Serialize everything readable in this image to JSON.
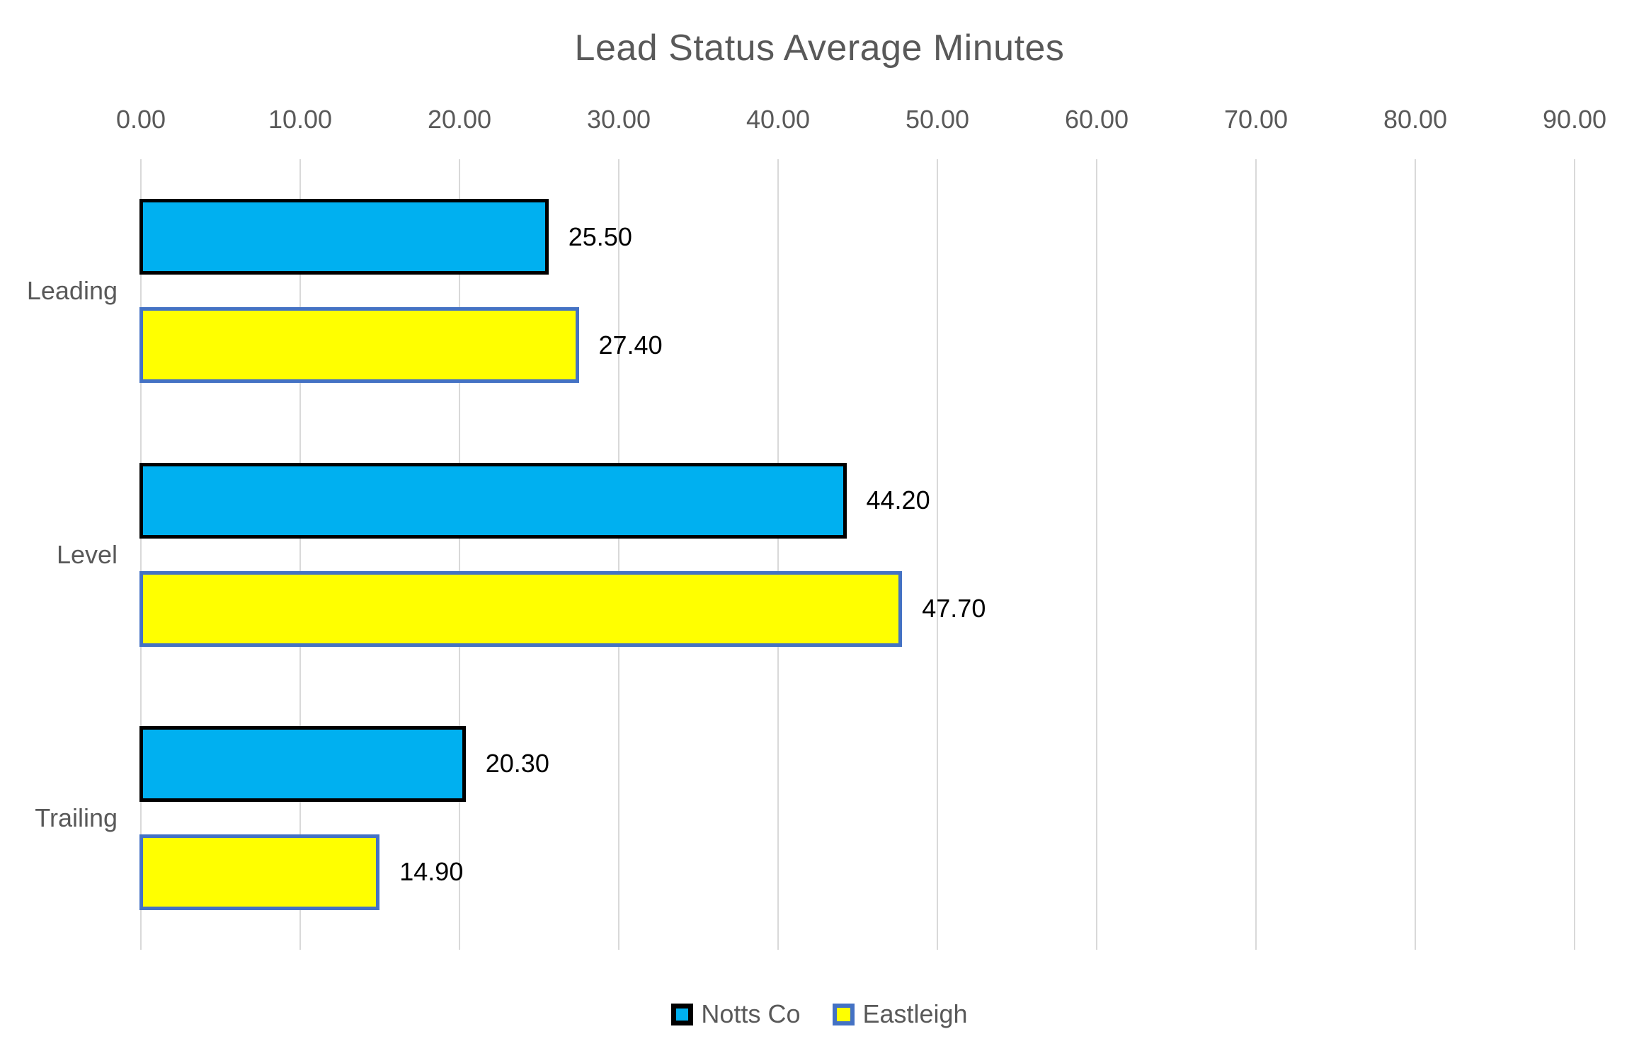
{
  "title": "Lead Status Average Minutes",
  "colors": {
    "notts_co_fill": "#00B0F0",
    "notts_co_border": "#000000",
    "eastleigh_fill": "#FFFF00",
    "eastleigh_border": "#4472C4",
    "gridline": "#D9D9D9",
    "axis_text": "#595959",
    "data_label_text": "#000000",
    "background": "#FFFFFF"
  },
  "chart_data": {
    "type": "bar",
    "orientation": "horizontal",
    "title": "Lead Status Average Minutes",
    "categories": [
      "Leading",
      "Level",
      "Trailing"
    ],
    "series": [
      {
        "name": "Notts Co",
        "fill": "#00B0F0",
        "border": "#000000",
        "values": [
          25.5,
          44.2,
          20.3
        ],
        "labels": [
          "25.50",
          "44.20",
          "20.30"
        ]
      },
      {
        "name": "Eastleigh",
        "fill": "#FFFF00",
        "border": "#4472C4",
        "values": [
          27.4,
          47.7,
          14.9
        ],
        "labels": [
          "27.40",
          "47.70",
          "14.90"
        ]
      }
    ],
    "x_axis": {
      "min": 0,
      "max": 90,
      "step": 10,
      "position": "top",
      "tick_labels": [
        "0.00",
        "10.00",
        "20.00",
        "30.00",
        "40.00",
        "50.00",
        "60.00",
        "70.00",
        "80.00",
        "90.00"
      ]
    },
    "grid": true,
    "value_labels_shown": true,
    "legend_position": "bottom"
  }
}
